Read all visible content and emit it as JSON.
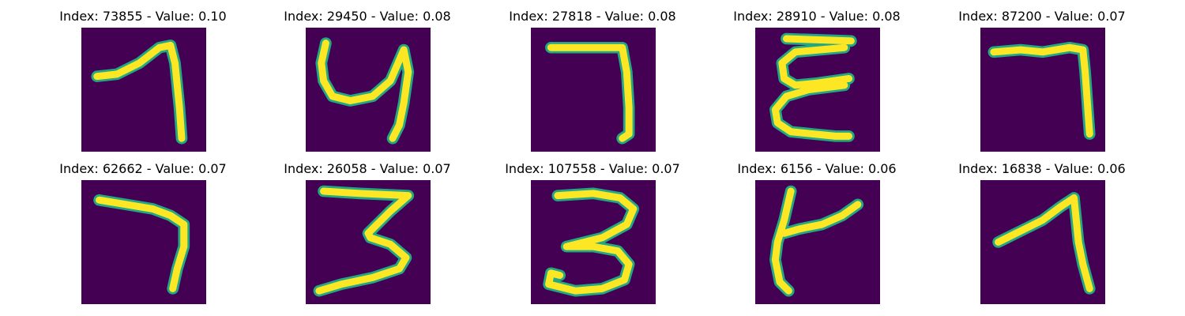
{
  "colors": {
    "background": "#440154",
    "stroke": "#fde725",
    "stroke_edge": "#22a884"
  },
  "panels": [
    {
      "title": "Index: 73855 - Value: 0.10",
      "glyph": "seven-hook"
    },
    {
      "title": "Index: 29450 - Value: 0.08",
      "glyph": "four-u"
    },
    {
      "title": "Index: 27818 - Value: 0.08",
      "glyph": "seven-box"
    },
    {
      "title": "Index: 28910 - Value: 0.08",
      "glyph": "epsilon"
    },
    {
      "title": "Index: 87200 - Value: 0.07",
      "glyph": "seven-flat"
    },
    {
      "title": "Index: 62662 - Value: 0.07",
      "glyph": "seven-curve"
    },
    {
      "title": "Index: 26058 - Value: 0.07",
      "glyph": "three-z"
    },
    {
      "title": "Index: 107558 - Value: 0.07",
      "glyph": "three-round"
    },
    {
      "title": "Index: 6156 - Value: 0.06",
      "glyph": "four-open"
    },
    {
      "title": "Index: 16838 - Value: 0.06",
      "glyph": "one-hook"
    }
  ]
}
